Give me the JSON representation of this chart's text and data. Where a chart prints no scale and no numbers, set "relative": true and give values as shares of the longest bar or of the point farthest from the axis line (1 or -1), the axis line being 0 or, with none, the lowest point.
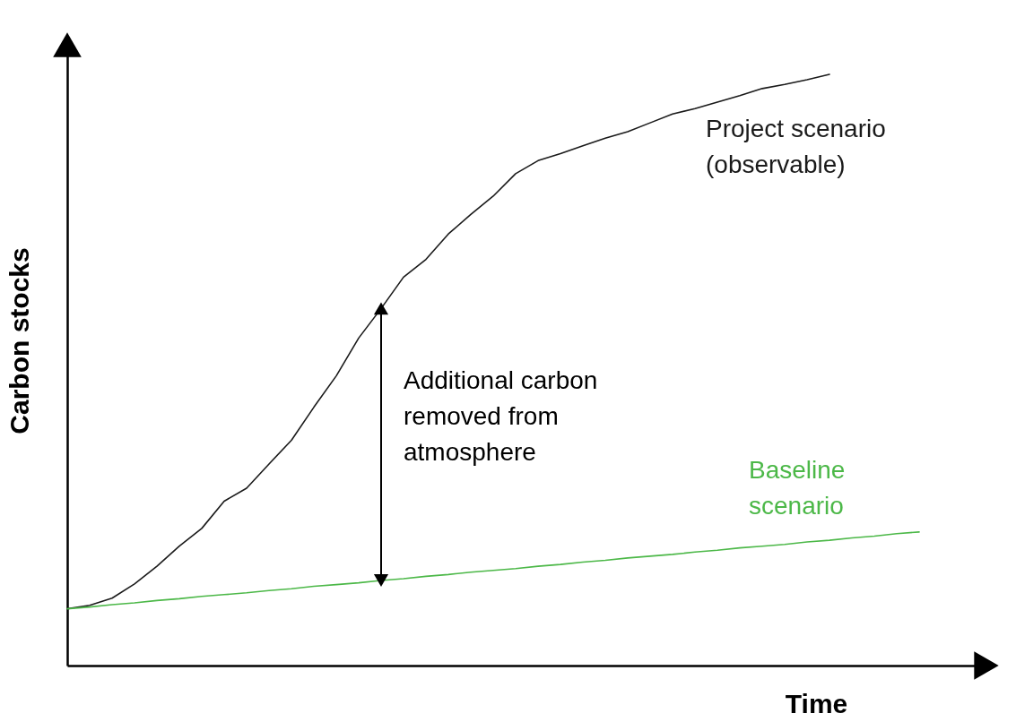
{
  "chart_data": {
    "type": "line",
    "relative": true,
    "xlabel": "Time",
    "ylabel": "Carbon stocks",
    "legend": false,
    "grid": false,
    "categories": [
      null,
      null,
      null,
      null,
      null,
      null,
      null,
      null,
      null,
      null,
      null,
      null,
      null,
      null,
      null,
      null,
      null,
      null,
      null,
      null,
      null,
      null,
      null,
      null,
      null,
      null,
      null,
      null,
      null,
      null,
      null,
      null,
      null,
      null,
      null,
      null,
      null,
      null,
      null
    ],
    "series": [
      {
        "name": "Project scenario (observable)",
        "color": "#1a1a1a",
        "values": [
          0.096,
          0.102,
          0.114,
          0.138,
          0.168,
          0.202,
          0.232,
          0.278,
          0.3,
          0.341,
          0.381,
          0.437,
          0.49,
          0.554,
          0.604,
          0.657,
          0.687,
          0.73,
          0.763,
          0.794,
          0.832,
          0.854,
          0.866,
          0.879,
          0.892,
          0.903,
          0.918,
          0.933,
          0.942,
          0.953,
          0.964,
          0.976,
          0.983,
          0.991,
          1.0,
          null,
          null,
          null,
          null
        ]
      },
      {
        "name": "Baseline scenario",
        "color": "#4cb848",
        "values": [
          0.096,
          0.099,
          0.103,
          0.106,
          0.11,
          0.113,
          0.117,
          0.12,
          0.123,
          0.127,
          0.13,
          0.134,
          0.137,
          0.14,
          0.144,
          0.147,
          0.151,
          0.154,
          0.158,
          0.161,
          0.164,
          0.168,
          0.171,
          0.175,
          0.178,
          0.182,
          0.185,
          0.188,
          0.192,
          0.195,
          0.199,
          0.202,
          0.205,
          0.209,
          0.212,
          0.216,
          0.219,
          0.223,
          0.226
        ]
      }
    ],
    "annotations": [
      "Additional carbon removed from atmosphere"
    ]
  }
}
